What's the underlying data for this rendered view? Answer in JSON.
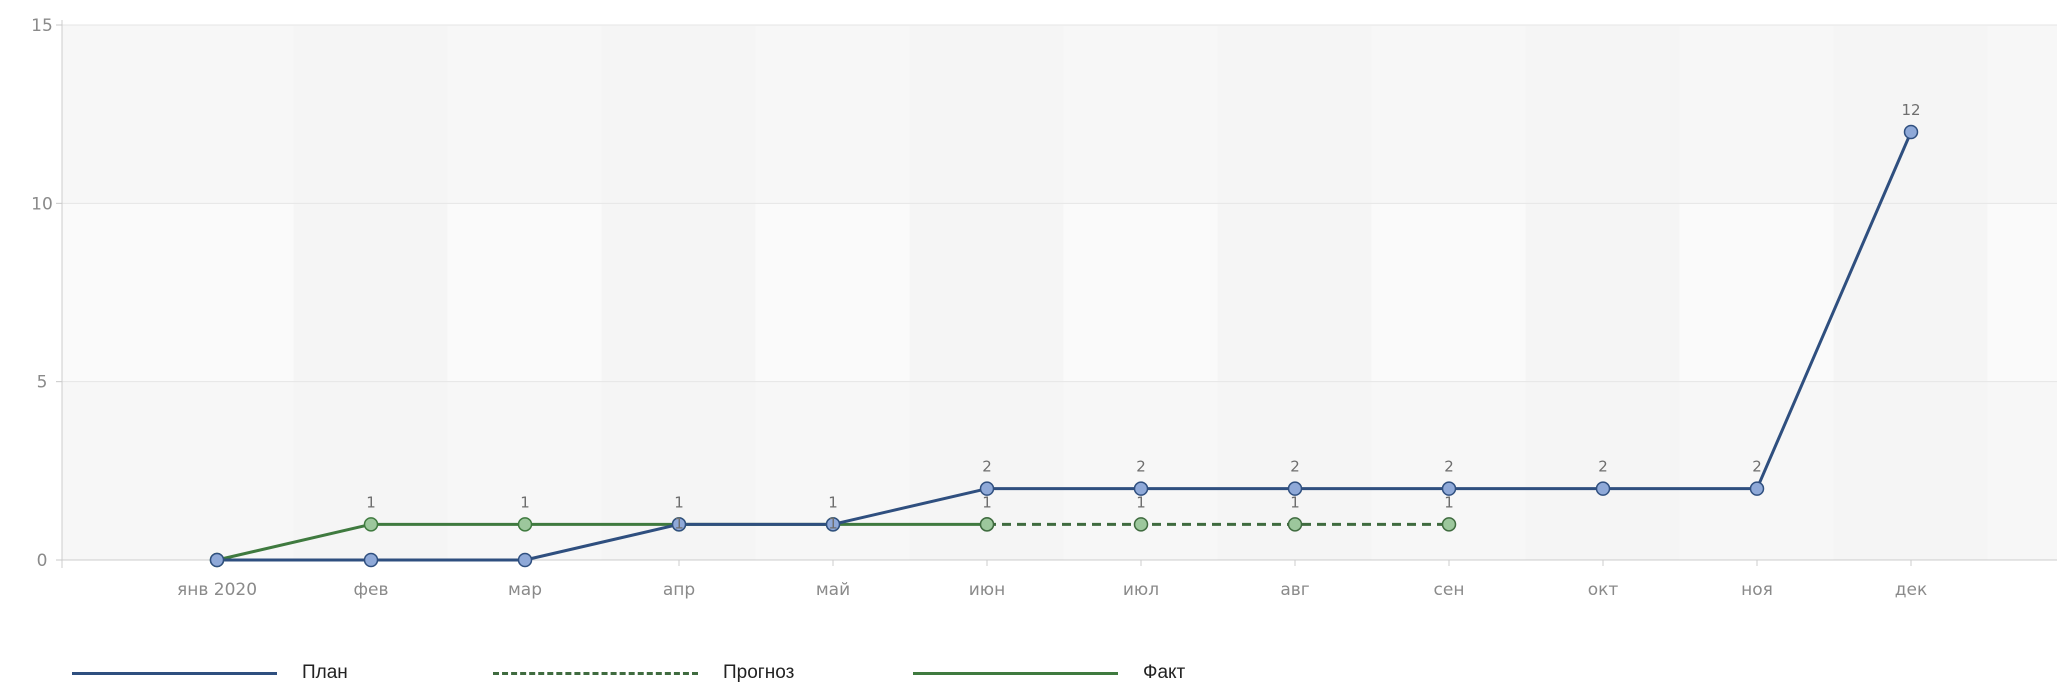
{
  "chart_data": {
    "type": "line",
    "categories": [
      "янв 2020",
      "фев",
      "мар",
      "апр",
      "май",
      "июн",
      "июл",
      "авг",
      "сен",
      "окт",
      "ноя",
      "дек"
    ],
    "ylim": [
      0,
      15
    ],
    "yticks": [
      "0",
      "5",
      "10",
      "15"
    ],
    "grid": true,
    "legend_position": "bottom-left",
    "series": [
      {
        "name": "План",
        "color": "#2f4f7f",
        "marker_color": "#8fa9d8",
        "style": "solid",
        "values": [
          0,
          0,
          0,
          1,
          1,
          2,
          2,
          2,
          2,
          2,
          2,
          12
        ],
        "labels": [
          "",
          "",
          "",
          "",
          "",
          "2",
          "2",
          "2",
          "2",
          "2",
          "2",
          "12"
        ]
      },
      {
        "name": "Прогноз",
        "color": "#3f6b3f",
        "marker_color": "#9cc79c",
        "style": "dashed",
        "values": [
          null,
          null,
          null,
          null,
          null,
          1,
          1,
          1,
          1,
          null,
          null,
          null
        ],
        "labels": [
          "",
          "",
          "",
          "",
          "",
          "",
          "1",
          "1",
          "1",
          "",
          "",
          ""
        ]
      },
      {
        "name": "Факт",
        "color": "#3f7a3f",
        "marker_color": "#9cc79c",
        "style": "solid",
        "values": [
          0,
          1,
          1,
          1,
          1,
          1,
          null,
          null,
          null,
          null,
          null,
          null
        ],
        "labels": [
          "",
          "1",
          "1",
          "1",
          "1",
          "1",
          "",
          "",
          "",
          "",
          "",
          ""
        ],
        "secondary_labels": [
          "",
          "",
          "",
          "1",
          "1",
          "",
          "",
          "",
          "",
          "",
          "",
          ""
        ]
      }
    ]
  }
}
